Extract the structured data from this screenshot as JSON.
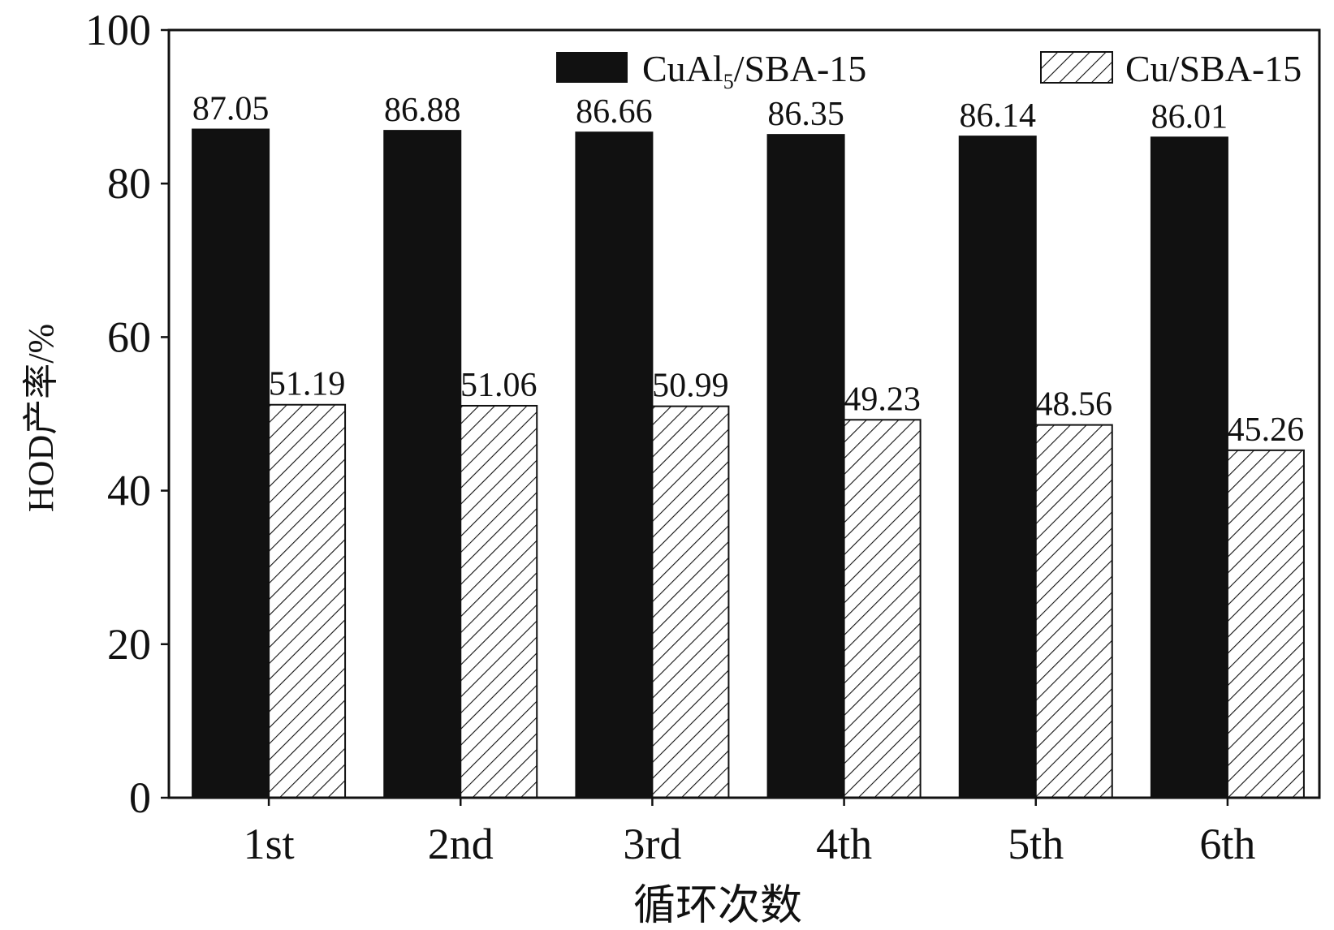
{
  "chart_data": {
    "type": "bar",
    "title": "",
    "xlabel": "循环次数",
    "ylabel": "HOD产率/%",
    "categories": [
      "1st",
      "2nd",
      "3rd",
      "4th",
      "5th",
      "6th"
    ],
    "series": [
      {
        "name": "CuAl",
        "name_subscript": "5",
        "name_suffix": "/SBA-15",
        "fill": "solid",
        "color": "#111111",
        "values": [
          87.05,
          86.88,
          86.66,
          86.35,
          86.14,
          86.01
        ],
        "labels": [
          "87.05",
          "86.88",
          "86.66",
          "86.35",
          "86.14",
          "86.01"
        ]
      },
      {
        "name": "Cu/SBA-15",
        "fill": "hatched",
        "color": "#111111",
        "values": [
          51.19,
          51.06,
          50.99,
          49.23,
          48.56,
          45.26
        ],
        "labels": [
          "51.19",
          "51.06",
          "50.99",
          "49.23",
          "48.56",
          "45.26"
        ]
      }
    ],
    "ylim": [
      0,
      100
    ],
    "yticks": [
      0,
      20,
      40,
      60,
      80,
      100
    ],
    "grid": false,
    "legend_position": "top"
  }
}
